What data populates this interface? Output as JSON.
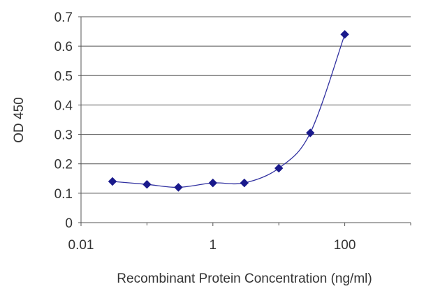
{
  "chart_data": {
    "type": "line",
    "title": "",
    "xlabel": "Recombinant Protein Concentration (ng/ml)",
    "ylabel": "OD 450",
    "xscale": "log",
    "xlim": [
      0.01,
      1000
    ],
    "ylim": [
      0,
      0.7
    ],
    "xticks": [
      0.01,
      1,
      100
    ],
    "xtick_labels": [
      "0.01",
      "1",
      "100"
    ],
    "yticks": [
      0,
      0.1,
      0.2,
      0.3,
      0.4,
      0.5,
      0.6,
      0.7
    ],
    "ytick_labels": [
      "0",
      "0.1",
      "0.2",
      "0.3",
      "0.4",
      "0.5",
      "0.6",
      "0.7"
    ],
    "grid": "horizontal",
    "series": [
      {
        "color": "#3030a0",
        "marker": "diamond",
        "x": [
          0.03,
          0.1,
          0.3,
          1,
          3,
          10,
          30,
          100
        ],
        "y": [
          0.14,
          0.13,
          0.12,
          0.135,
          0.135,
          0.185,
          0.305,
          0.64
        ]
      }
    ]
  }
}
